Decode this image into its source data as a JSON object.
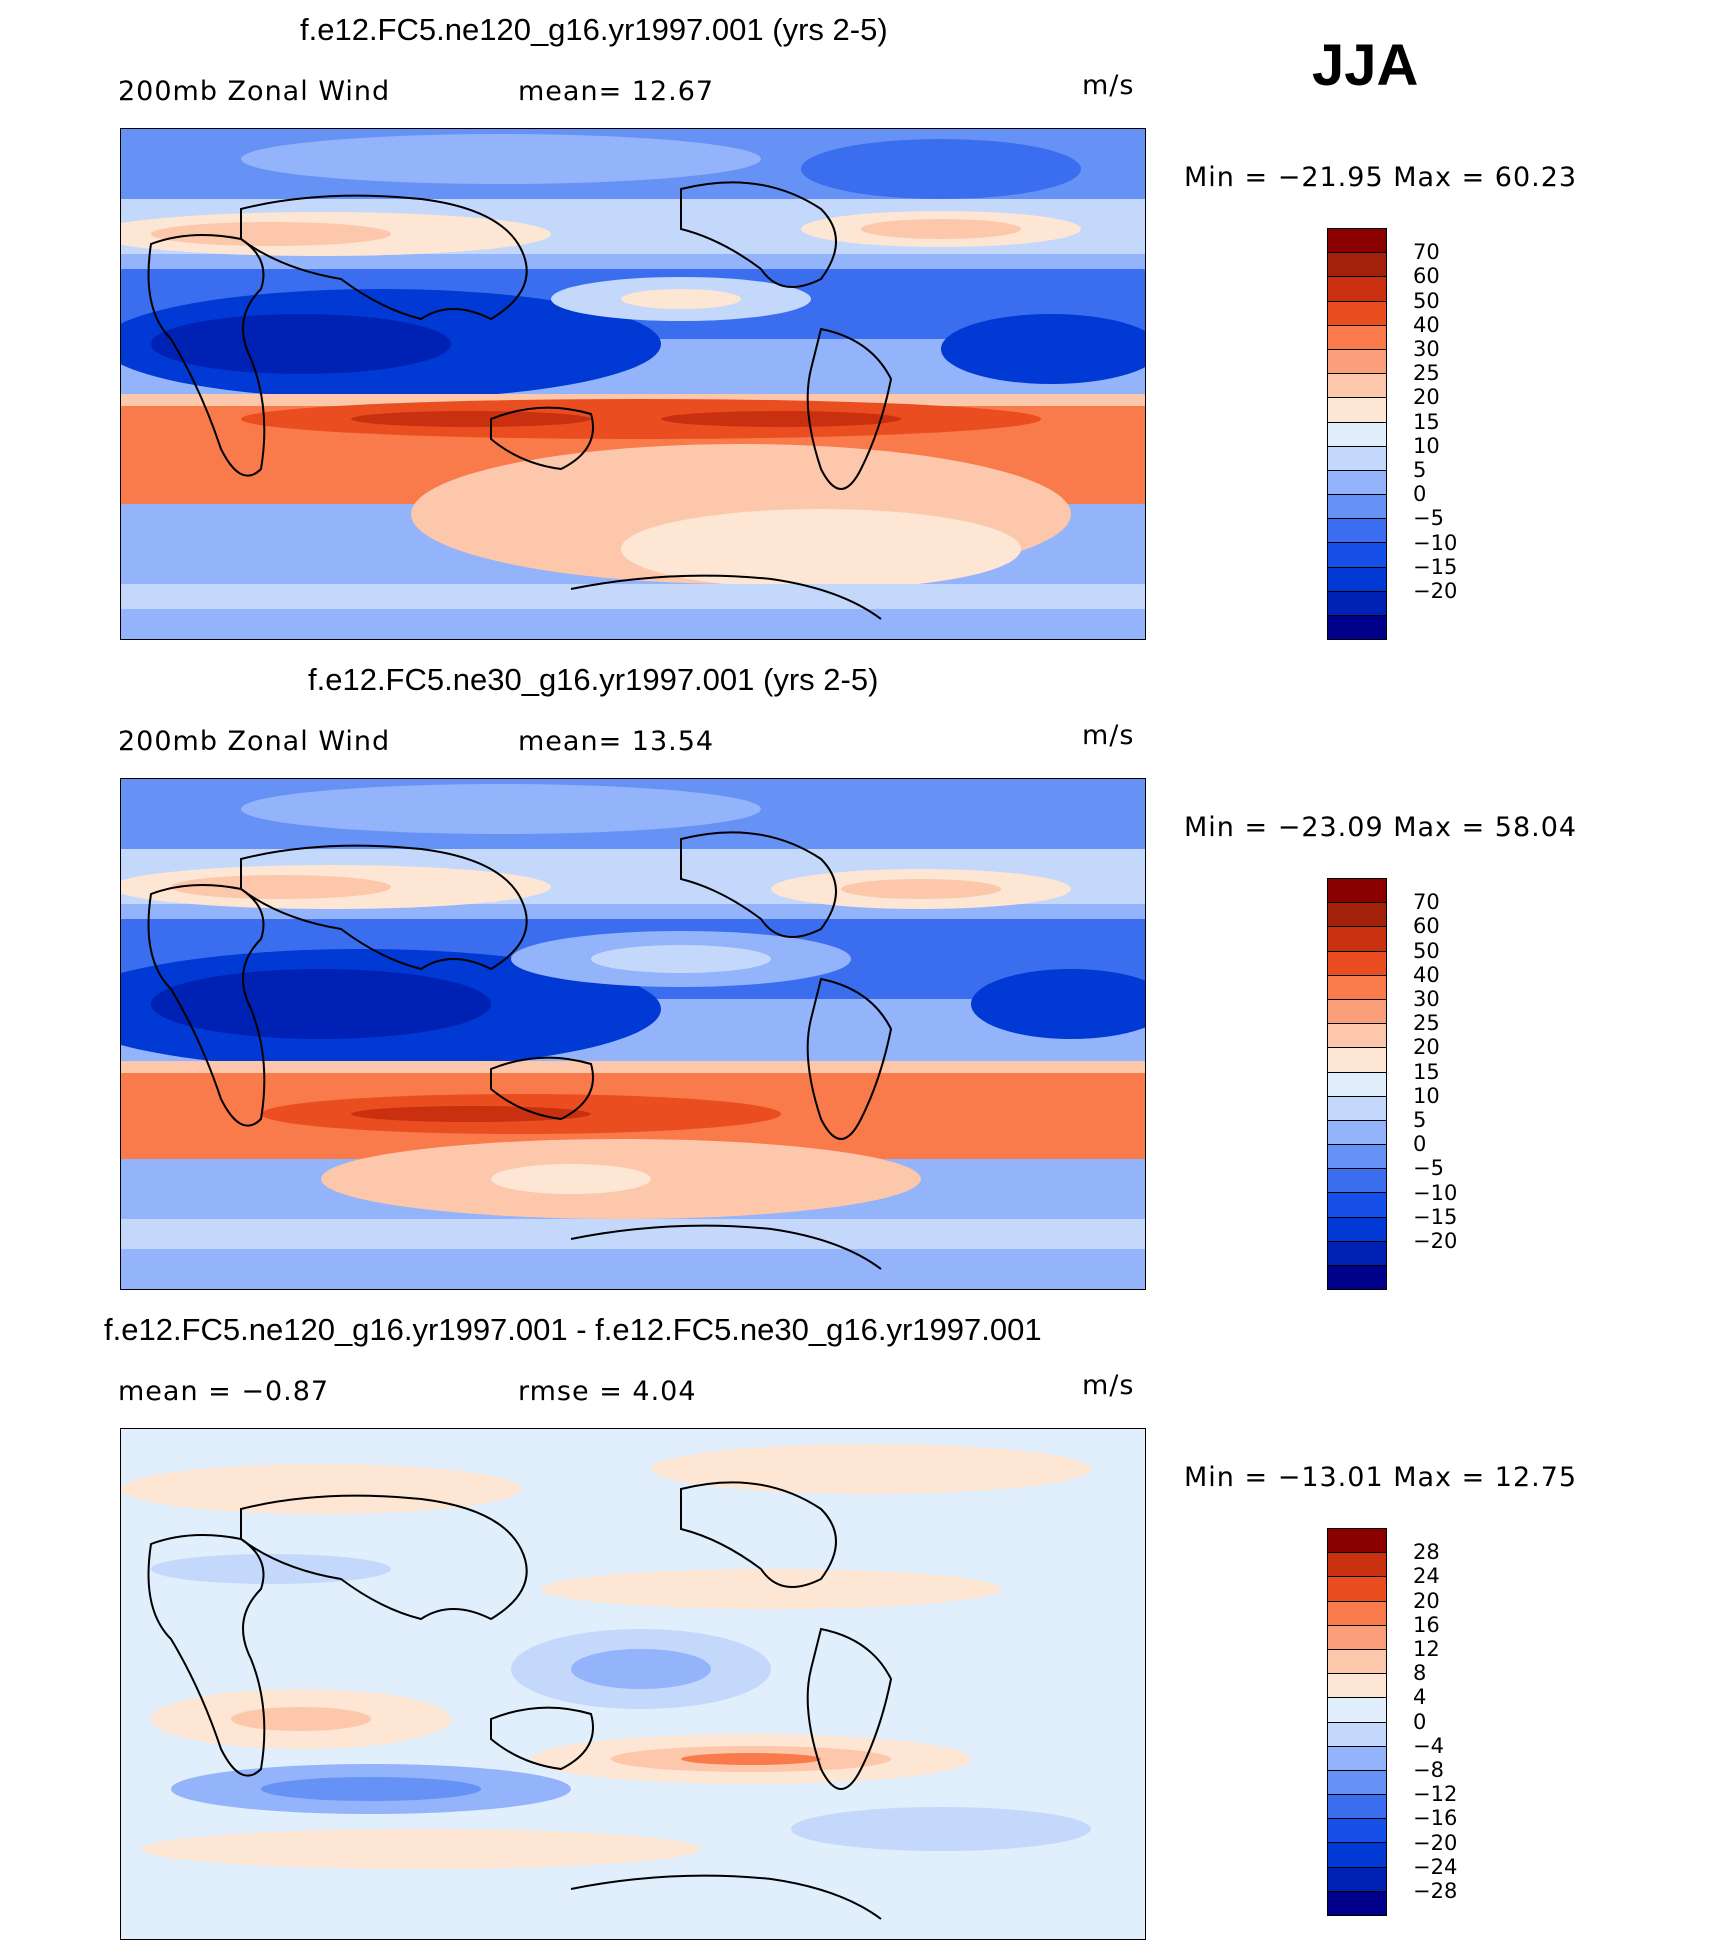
{
  "season": "JJA",
  "colors": {
    "wind": [
      "#00008b",
      "#0022b4",
      "#0039d4",
      "#1650e8",
      "#3b6eef",
      "#6691f5",
      "#93b3fa",
      "#c3d8fb",
      "#e1eefc",
      "#fde6d4",
      "#fcc7ab",
      "#fb9f7a",
      "#f97a4a",
      "#ea4e20",
      "#c93010",
      "#a2210b",
      "#8b0000"
    ],
    "diff": [
      "#00008b",
      "#0022b4",
      "#0039d4",
      "#1650e8",
      "#3b6eef",
      "#6691f5",
      "#93b3fa",
      "#c3d8fb",
      "#e1eefc",
      "#fde6d4",
      "#fcc7ab",
      "#fb9f7a",
      "#f97a4a",
      "#ea4e20",
      "#c93010",
      "#8b0000"
    ]
  },
  "panels": [
    {
      "title": "f.e12.FC5.ne120_g16.yr1997.001 (yrs 2-5)",
      "left_label": "200mb Zonal Wind",
      "mid_label": "mean=  12.67",
      "units": "m/s",
      "minmax": "Min = −21.95 Max =   60.23",
      "colorbar_ticks": [
        "70",
        "60",
        "50",
        "40",
        "30",
        "25",
        "20",
        "15",
        "10",
        "5",
        "0",
        "−5",
        "−10",
        "−15",
        "−20"
      ]
    },
    {
      "title": "f.e12.FC5.ne30_g16.yr1997.001 (yrs 2-5)",
      "left_label": "200mb Zonal Wind",
      "mid_label": "mean=  13.54",
      "units": "m/s",
      "minmax": "Min = −23.09 Max =   58.04",
      "colorbar_ticks": [
        "70",
        "60",
        "50",
        "40",
        "30",
        "25",
        "20",
        "15",
        "10",
        "5",
        "0",
        "−5",
        "−10",
        "−15",
        "−20"
      ]
    },
    {
      "title": "f.e12.FC5.ne120_g16.yr1997.001 - f.e12.FC5.ne30_g16.yr1997.001",
      "left_label": "mean =  −0.87",
      "mid_label": "rmse =    4.04",
      "units": "m/s",
      "minmax": "Min = −13.01 Max =   12.75",
      "colorbar_ticks": [
        "28",
        "24",
        "20",
        "16",
        "12",
        "8",
        "4",
        "0",
        "−4",
        "−8",
        "−12",
        "−16",
        "−20",
        "−24",
        "−28"
      ]
    }
  ]
}
